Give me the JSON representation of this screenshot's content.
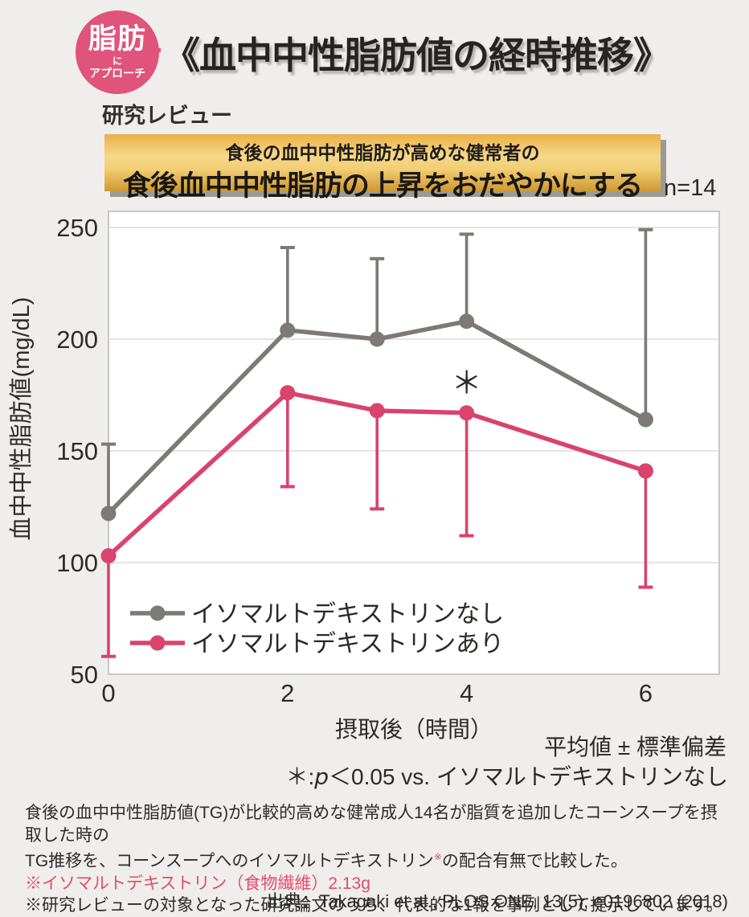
{
  "palette": {
    "background": "#efeeec",
    "badge_pink": "#e0537a",
    "series_gray": "#7c7977",
    "series_pink": "#d9436e",
    "footnote_pink": "#e64a6c",
    "banner_gold_top": "#e9b04a",
    "banner_gold_light": "#f6d88a",
    "banner_gold_bottom": "#cd9833"
  },
  "header": {
    "badge": {
      "line1": "脂肪",
      "line2": "に",
      "line3": "アプローチ"
    },
    "title": "《血中中性脂肪値の経時推移》",
    "review_label": "研究レビュー",
    "banner": {
      "line1": "食後の血中中性脂肪が高めな健常者の",
      "line2": "食後血中中性脂肪の上昇をおだやかにする"
    },
    "sample_size": "n=14"
  },
  "chart_data": {
    "type": "line",
    "xlabel": "摂取後（時間）",
    "ylabel": "血中中性脂肪値(mg/dL)",
    "x": [
      0,
      2,
      3,
      4,
      6
    ],
    "x_tick_labels": [
      "0",
      "2",
      "4",
      "6"
    ],
    "x_ticks": [
      0,
      2,
      4,
      6
    ],
    "y_ticks": [
      50,
      100,
      150,
      200,
      250
    ],
    "ylim": [
      50,
      250
    ],
    "grid": "horizontal",
    "legend_position": "inside-bottom-left",
    "series": [
      {
        "name": "イソマルトデキストリンなし",
        "color": "#7c7977",
        "values": [
          122,
          204,
          200,
          208,
          164
        ],
        "error": [
          31,
          37,
          36,
          39,
          85
        ],
        "error_direction": "up"
      },
      {
        "name": "イソマルトデキストリンあり",
        "color": "#d9436e",
        "values": [
          103,
          176,
          168,
          167,
          141
        ],
        "error": [
          45,
          42,
          44,
          55,
          52
        ],
        "error_direction": "down"
      }
    ],
    "annotation": {
      "text": "＊",
      "x": 4,
      "y": 180
    }
  },
  "notes": {
    "mean_sd": "平均値 ± 標準偏差",
    "sig_prefix": "＊:",
    "sig_p": "p",
    "sig_rest": "＜0.05 vs. イソマルトデキストリンなし"
  },
  "footnote": {
    "line1": "食後の血中中性脂肪値(TG)が比較的高めな健常成人14名が脂質を追加したコーンスープを摂取した時の",
    "line2_pre": "TG推移を、コーンスープへのイソマルトデキストリン",
    "line2_sup": "※",
    "line2_post": "の配合有無で比較した。",
    "line3": "※イソマルトデキストリン（食物繊維）2.13g",
    "line4": "※研究レビューの対象となった研究論文のうち、代表的な1報を事例として提示しています。"
  },
  "source": "出典：Takagaki et al., PLOS ONE, 13(5), e0196802 (2018)"
}
